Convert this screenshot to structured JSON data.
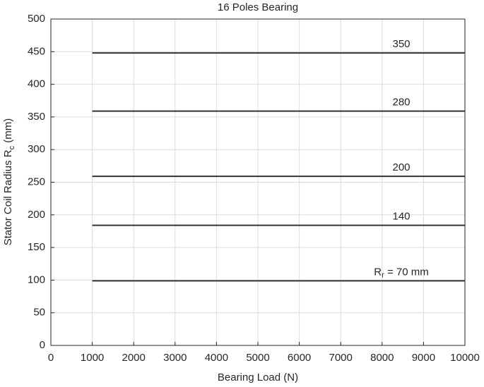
{
  "chart_data": {
    "type": "line",
    "title": "16 Poles Bearing",
    "xlabel": "Bearing Load (N)",
    "ylabel": [
      "Stator Coil Radius R",
      "c",
      " (mm)"
    ],
    "xlim": [
      0,
      10000
    ],
    "ylim": [
      0,
      500
    ],
    "xticks": [
      0,
      1000,
      2000,
      3000,
      4000,
      5000,
      6000,
      7000,
      8000,
      9000,
      10000
    ],
    "yticks": [
      0,
      50,
      100,
      150,
      200,
      250,
      300,
      350,
      400,
      450,
      500
    ],
    "grid": true,
    "color": "#333333",
    "series": [
      {
        "name": [
          "350"
        ],
        "x": [
          1000,
          10000
        ],
        "values": [
          448,
          448
        ]
      },
      {
        "name": [
          "280"
        ],
        "x": [
          1000,
          10000
        ],
        "values": [
          359,
          359
        ]
      },
      {
        "name": [
          "200"
        ],
        "x": [
          1000,
          10000
        ],
        "values": [
          259,
          259
        ]
      },
      {
        "name": [
          "140"
        ],
        "x": [
          1000,
          10000
        ],
        "values": [
          184,
          184
        ]
      },
      {
        "name": [
          "R",
          "r",
          " = 70 mm"
        ],
        "x": [
          1000,
          10000
        ],
        "values": [
          99,
          99
        ]
      }
    ]
  }
}
